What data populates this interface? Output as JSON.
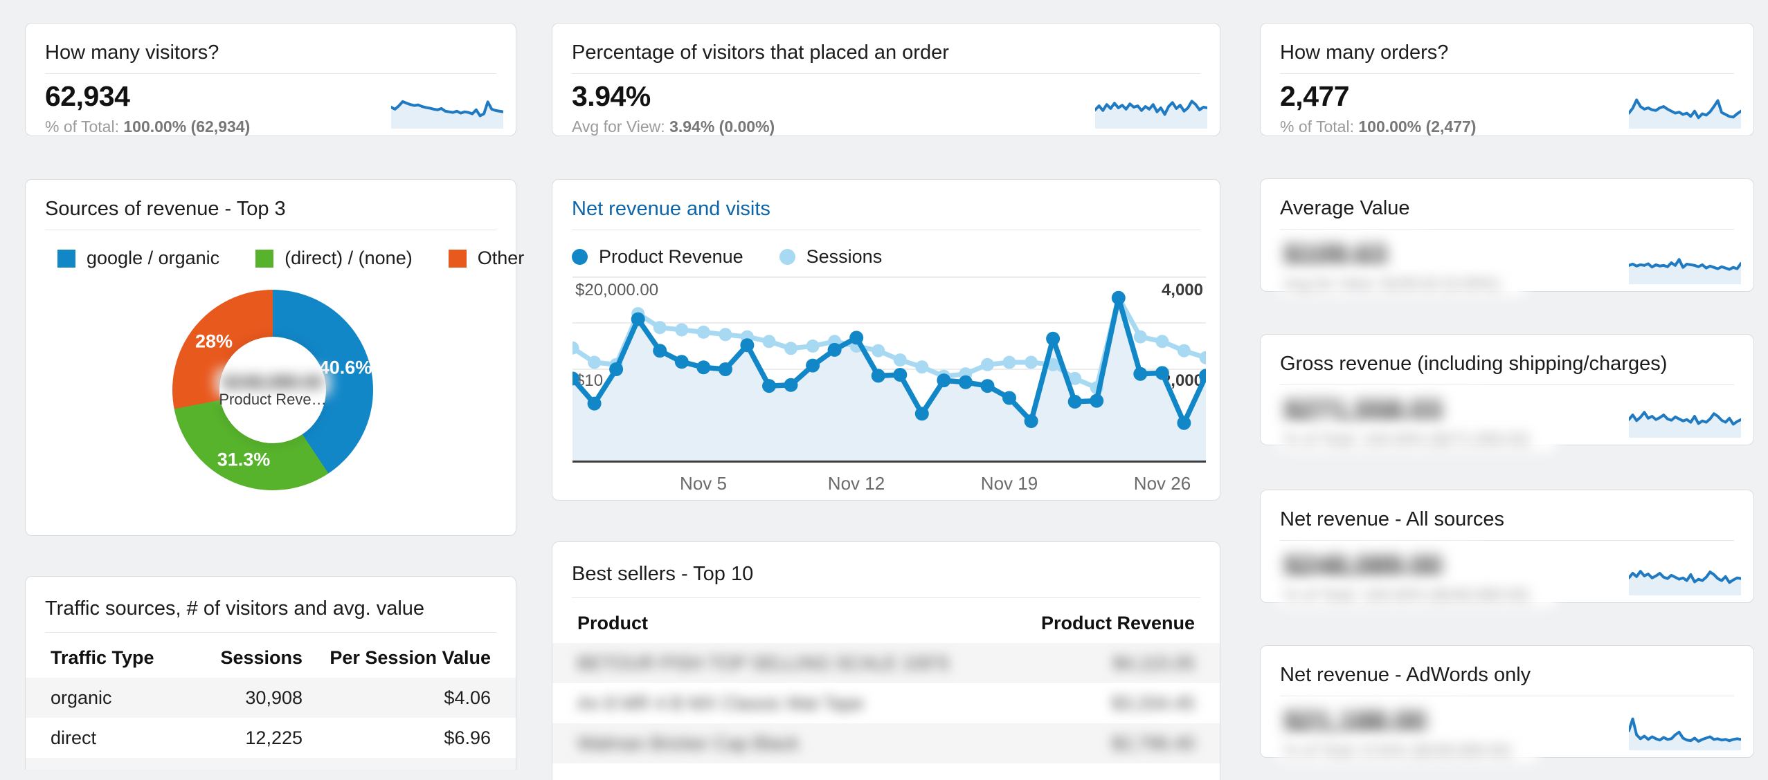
{
  "page": {
    "background": "#f0f1f3"
  },
  "colors": {
    "blue": "#1287c8",
    "green": "#57b22c",
    "orange": "#e8591e",
    "light_blue": "#a7d9f2",
    "area_fill": "#e4eff8",
    "spark_line": "#1f7ac2",
    "spark_fill": "#e4eff8",
    "link_title": "#0d65a8"
  },
  "kpi_cards": [
    {
      "title": "How many visitors?",
      "value": "62,934",
      "subtitle_prefix": "% of Total: ",
      "subtitle_bold": "100.00% (62,934)",
      "sparkline": [
        58,
        52,
        62,
        75,
        70,
        66,
        63,
        65,
        60,
        57,
        55,
        52,
        50,
        54,
        46,
        44,
        42,
        46,
        40,
        44,
        42,
        38,
        50,
        32,
        38,
        74,
        52,
        48,
        46,
        44
      ]
    },
    {
      "title": "Percentage of visitors that placed an order",
      "value": "3.94%",
      "subtitle_prefix": "Avg for View: ",
      "subtitle_bold": "3.94% (0.00%)",
      "sparkline": [
        50,
        62,
        48,
        66,
        54,
        70,
        56,
        64,
        52,
        68,
        58,
        62,
        48,
        60,
        52,
        66,
        44,
        56,
        36,
        60,
        72,
        54,
        64,
        46,
        56,
        76,
        66,
        50,
        58,
        56
      ]
    },
    {
      "title": "How many orders?",
      "value": "2,477",
      "subtitle_prefix": "% of Total: ",
      "subtitle_bold": "100.00% (2,477)",
      "sparkline": [
        40,
        55,
        80,
        60,
        52,
        56,
        50,
        48,
        56,
        60,
        52,
        46,
        40,
        43,
        36,
        40,
        30,
        46,
        26,
        38,
        34,
        44,
        60,
        78,
        42,
        36,
        30,
        28,
        38,
        46
      ]
    }
  ],
  "right_cards": [
    {
      "title": "Average Value",
      "value": "$109.63",
      "subtitle": "Avg for View: $109.63 (0.00%)",
      "redacted": true,
      "sparkline": [
        50,
        54,
        48,
        52,
        50,
        55,
        45,
        52,
        48,
        50,
        46,
        58,
        50,
        68,
        44,
        54,
        52,
        50,
        46,
        52,
        42,
        48,
        44,
        40,
        46,
        42,
        38,
        44,
        40,
        56
      ]
    },
    {
      "title": "Gross revenue (including shipping/charges)",
      "value": "$271,558.03",
      "subtitle": "% of Total: 100.00% ($271,558.03)",
      "redacted": true,
      "sparkline": [
        48,
        62,
        45,
        55,
        70,
        52,
        58,
        48,
        54,
        62,
        50,
        46,
        56,
        50,
        44,
        48,
        40,
        58,
        36,
        44,
        40,
        50,
        66,
        58,
        46,
        40,
        52,
        34,
        42,
        48
      ]
    },
    {
      "title": "Net revenue - All sources",
      "value": "$248,089.00",
      "subtitle": "% of Total: 100.00% ($248,089.00)",
      "redacted": true,
      "sparkline": [
        46,
        60,
        50,
        66,
        52,
        58,
        46,
        52,
        60,
        48,
        44,
        54,
        48,
        42,
        46,
        38,
        56,
        34,
        42,
        38,
        48,
        64,
        56,
        44,
        38,
        50,
        32,
        40,
        46,
        44
      ]
    },
    {
      "title": "Net revenue - AdWords only",
      "value": "$21,188.00",
      "subtitle": "% of Total: 8.54% ($248,089.00)",
      "redacted": true,
      "sparkline": [
        52,
        88,
        40,
        28,
        36,
        26,
        34,
        28,
        24,
        32,
        26,
        28,
        40,
        48,
        30,
        24,
        22,
        30,
        20,
        26,
        30,
        34,
        26,
        28,
        24,
        26,
        22,
        26,
        28,
        26
      ]
    }
  ],
  "chart_data": [
    {
      "type": "pie",
      "donut": true,
      "title": "Sources of revenue - Top 3",
      "legend_position": "top",
      "slices": [
        {
          "label": "google / organic",
          "value": 40.6,
          "display": "40.6%",
          "color": "#1287c8"
        },
        {
          "label": "(direct) / (none)",
          "value": 31.3,
          "display": "31.3%",
          "color": "#57b22c"
        },
        {
          "label": "Other",
          "value": 28.0,
          "display": "28%",
          "color": "#e8591e"
        }
      ],
      "center_value": "$248,089.00",
      "center_value_redacted": true,
      "center_label": "Product Reve…"
    },
    {
      "type": "line",
      "title": "Net revenue and visits",
      "title_is_link": true,
      "grid": true,
      "legend_position": "top",
      "x": [
        "Oct 30",
        "Oct 31",
        "Nov 1",
        "Nov 2",
        "Nov 3",
        "Nov 4",
        "Nov 5",
        "Nov 6",
        "Nov 7",
        "Nov 8",
        "Nov 9",
        "Nov 10",
        "Nov 11",
        "Nov 12",
        "Nov 13",
        "Nov 14",
        "Nov 15",
        "Nov 16",
        "Nov 17",
        "Nov 18",
        "Nov 19",
        "Nov 20",
        "Nov 21",
        "Nov 22",
        "Nov 23",
        "Nov 24",
        "Nov 25",
        "Nov 26",
        "Nov 27",
        "Nov 28"
      ],
      "x_tick_labels": [
        "Nov 5",
        "Nov 12",
        "Nov 19",
        "Nov 26"
      ],
      "x_tick_indices": [
        6,
        13,
        20,
        27
      ],
      "left_axis": {
        "label": "Product Revenue ($)",
        "max": 20000,
        "min": 0,
        "ticks": [
          "$20,000.00",
          "$10,000.00"
        ],
        "tick_values": [
          20000,
          10000
        ]
      },
      "right_axis": {
        "label": "Sessions",
        "max": 4000,
        "min": 0,
        "ticks": [
          "4,000",
          "2,000"
        ],
        "tick_values": [
          4000,
          2000
        ]
      },
      "series": [
        {
          "name": "Product Revenue",
          "axis": "left",
          "color": "#1287c8",
          "area_fill": "#e4eff8",
          "values": [
            9000,
            6300,
            10000,
            15400,
            12000,
            10800,
            10200,
            10000,
            12600,
            8200,
            8300,
            10400,
            12100,
            13400,
            9300,
            9400,
            5200,
            8800,
            8600,
            8200,
            6900,
            4400,
            13300,
            6500,
            6600,
            17700,
            9500,
            9600,
            4200,
            9300
          ]
        },
        {
          "name": "Sessions",
          "axis": "right",
          "color": "#a7d9f2",
          "values": [
            2460,
            2150,
            2100,
            3200,
            2900,
            2850,
            2800,
            2750,
            2700,
            2600,
            2450,
            2500,
            2600,
            2500,
            2400,
            2200,
            2050,
            1850,
            1900,
            2100,
            2150,
            2150,
            2100,
            1800,
            1600,
            3550,
            2700,
            2600,
            2400,
            2250
          ]
        }
      ]
    },
    {
      "type": "table",
      "title": "Traffic sources, # of visitors and avg. value",
      "columns": [
        "Traffic Type",
        "Sessions",
        "Per Session Value"
      ],
      "rows": [
        [
          "organic",
          "30,908",
          "$4.06"
        ],
        [
          "direct",
          "12,225",
          "$6.96"
        ]
      ],
      "third_row_partially_visible": true
    },
    {
      "type": "table",
      "title": "Best sellers - Top 10",
      "columns": [
        "Product",
        "Product Revenue"
      ],
      "rows_redacted": true,
      "rows": [
        [
          "BETOUR PISH TOP SELLING SCALE 100'S",
          "$4,115.05"
        ],
        [
          "An 8 MR 4 B MX Classic Mat Tape",
          "$3,334.45"
        ],
        [
          "Walman Bricker Cap Black",
          "$2,796.40"
        ]
      ]
    }
  ]
}
